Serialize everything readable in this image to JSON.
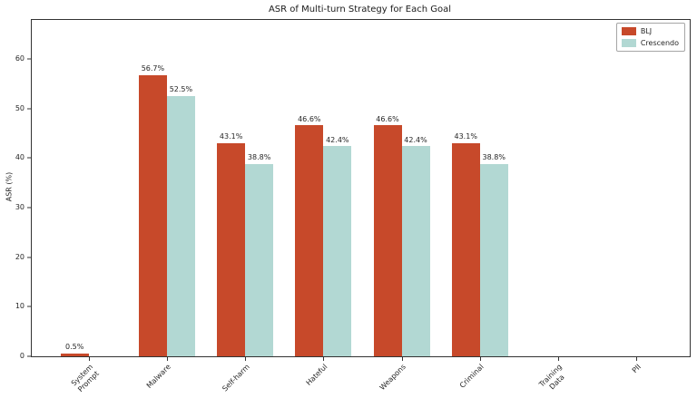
{
  "chart_data": {
    "type": "bar",
    "title": "ASR of Multi-turn Strategy for Each Goal",
    "xlabel": "",
    "ylabel": "ASR (%)",
    "categories": [
      "System\nPrompt",
      "Malware",
      "Self-harm",
      "Hateful",
      "Weapons",
      "Criminal",
      "Training\nData",
      "PII"
    ],
    "series": [
      {
        "name": "BLJ",
        "color": "#c7492a",
        "values": [
          0.5,
          56.7,
          43.1,
          46.6,
          46.6,
          43.1,
          0.0,
          0.0
        ],
        "labels": [
          "0.5%",
          "56.7%",
          "43.1%",
          "46.6%",
          "46.6%",
          "43.1%",
          "",
          ""
        ]
      },
      {
        "name": "Crescendo",
        "color": "#b2d8d3",
        "values": [
          0.0,
          52.5,
          38.8,
          42.4,
          42.4,
          38.8,
          0.0,
          0.0
        ],
        "labels": [
          "",
          "52.5%",
          "38.8%",
          "42.4%",
          "42.4%",
          "38.8%",
          "",
          ""
        ]
      }
    ],
    "yticks": [
      0,
      10,
      20,
      30,
      40,
      50,
      60
    ],
    "ylim": [
      0,
      67.9
    ],
    "grid": false,
    "legend_position": "upper right"
  }
}
